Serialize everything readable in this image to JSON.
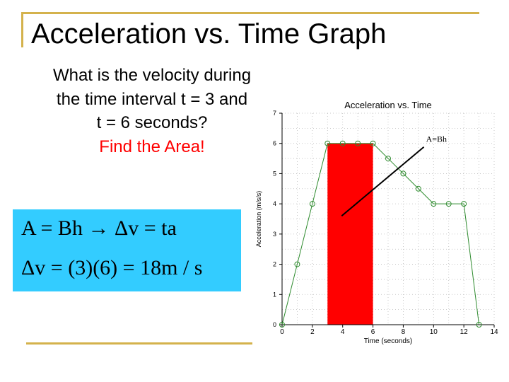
{
  "slide": {
    "title": "Acceleration vs. Time Graph",
    "question_line1": "What is the velocity during",
    "question_line2": "the time interval t = 3 and",
    "question_line3": "t = 6 seconds?",
    "hint": "Find the Area!",
    "formula_line1": "A = Bh → Δv = ta",
    "formula_line2": "Δv = (3)(6) = 18m / s"
  },
  "colors": {
    "accent_frame": "#d4b24c",
    "hint_text": "#ff0000",
    "formula_bg": "#33ccff",
    "area_fill": "#ff0000",
    "series_line": "#2e8b2e"
  },
  "chart_data": {
    "type": "line",
    "title": "Acceleration vs. Time",
    "xlabel": "Time (seconds)",
    "ylabel": "Acceleration (m/s/s)",
    "xlim": [
      0,
      14
    ],
    "ylim": [
      0,
      7
    ],
    "xticks": [
      0,
      2,
      4,
      6,
      8,
      10,
      12,
      14
    ],
    "yticks": [
      0,
      1,
      2,
      3,
      4,
      5,
      6,
      7
    ],
    "grid": true,
    "series": [
      {
        "x": [
          0,
          1,
          2,
          3,
          4,
          5,
          6,
          7,
          8,
          9,
          10,
          11,
          12,
          13
        ],
        "y": [
          0,
          2,
          4,
          6,
          6,
          6,
          6,
          5.5,
          5,
          4.5,
          4,
          4,
          4,
          0
        ]
      }
    ],
    "shaded_area": {
      "x_start": 3,
      "x_end": 6,
      "y": 6
    },
    "annotation": {
      "text": "A=Bh",
      "x": 9.5,
      "y": 6
    }
  }
}
